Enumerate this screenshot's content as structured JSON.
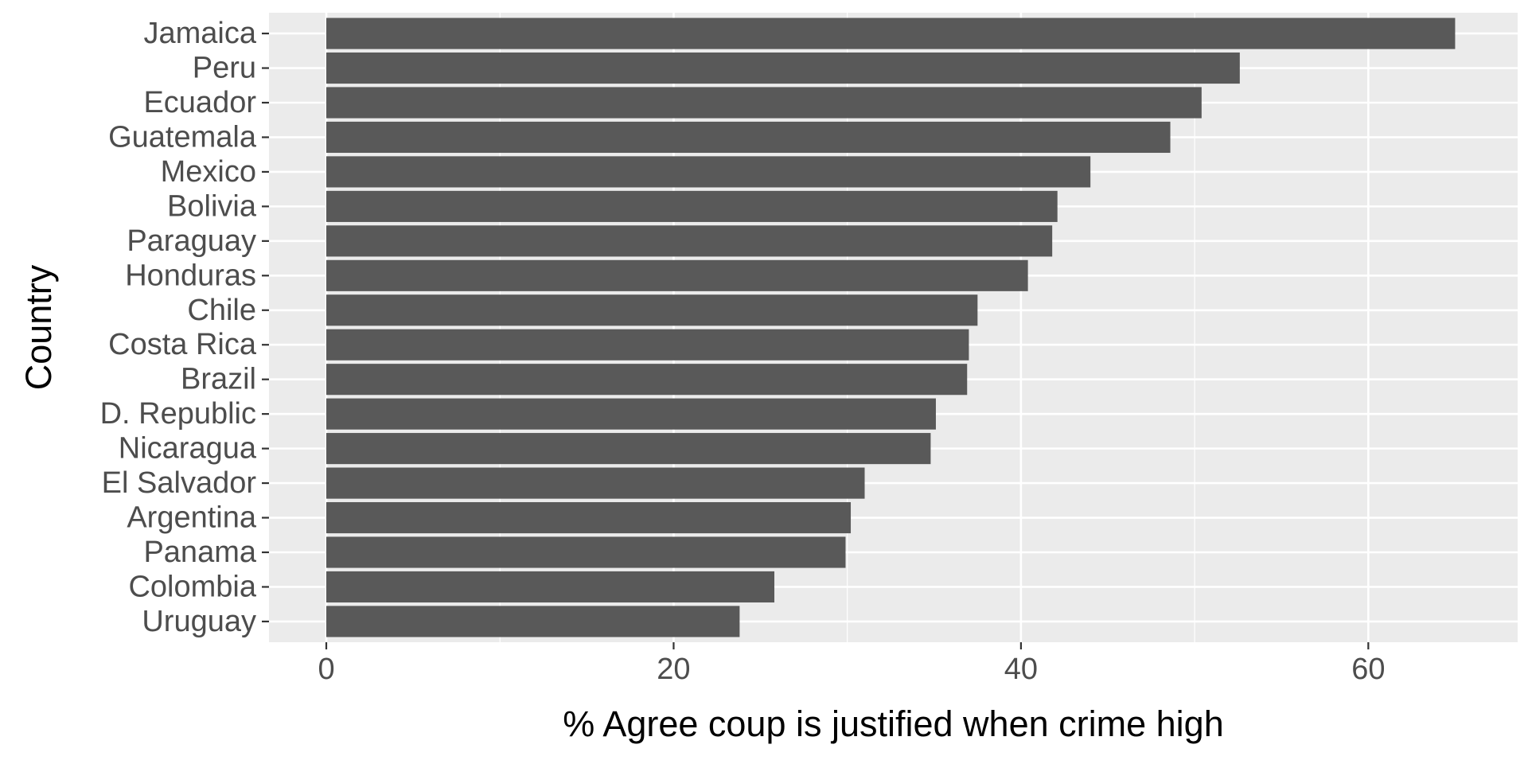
{
  "chart_data": {
    "type": "bar",
    "orientation": "horizontal",
    "xlabel": "% Agree coup is justified when crime high",
    "ylabel": "Country",
    "xlim": [
      -3.3,
      68.6
    ],
    "xticks": [
      0,
      20,
      40,
      60
    ],
    "xtick_labels": [
      "0",
      "20",
      "40",
      "60"
    ],
    "grid": true,
    "categories": [
      "Jamaica",
      "Peru",
      "Ecuador",
      "Guatemala",
      "Mexico",
      "Bolivia",
      "Paraguay",
      "Honduras",
      "Chile",
      "Costa Rica",
      "Brazil",
      "D. Republic",
      "Nicaragua",
      "El Salvador",
      "Argentina",
      "Panama",
      "Colombia",
      "Uruguay"
    ],
    "values": [
      65.0,
      52.6,
      50.4,
      48.6,
      44.0,
      42.1,
      41.8,
      40.4,
      37.5,
      37.0,
      36.9,
      35.1,
      34.8,
      31.0,
      30.2,
      29.9,
      25.8,
      23.8
    ],
    "colors": {
      "panel": "#ebebeb",
      "grid_major": "#ffffff",
      "bar": "#595959",
      "tick_text": "#4d4d4d",
      "title_text": "#000000",
      "tick_mark": "#333333"
    }
  }
}
